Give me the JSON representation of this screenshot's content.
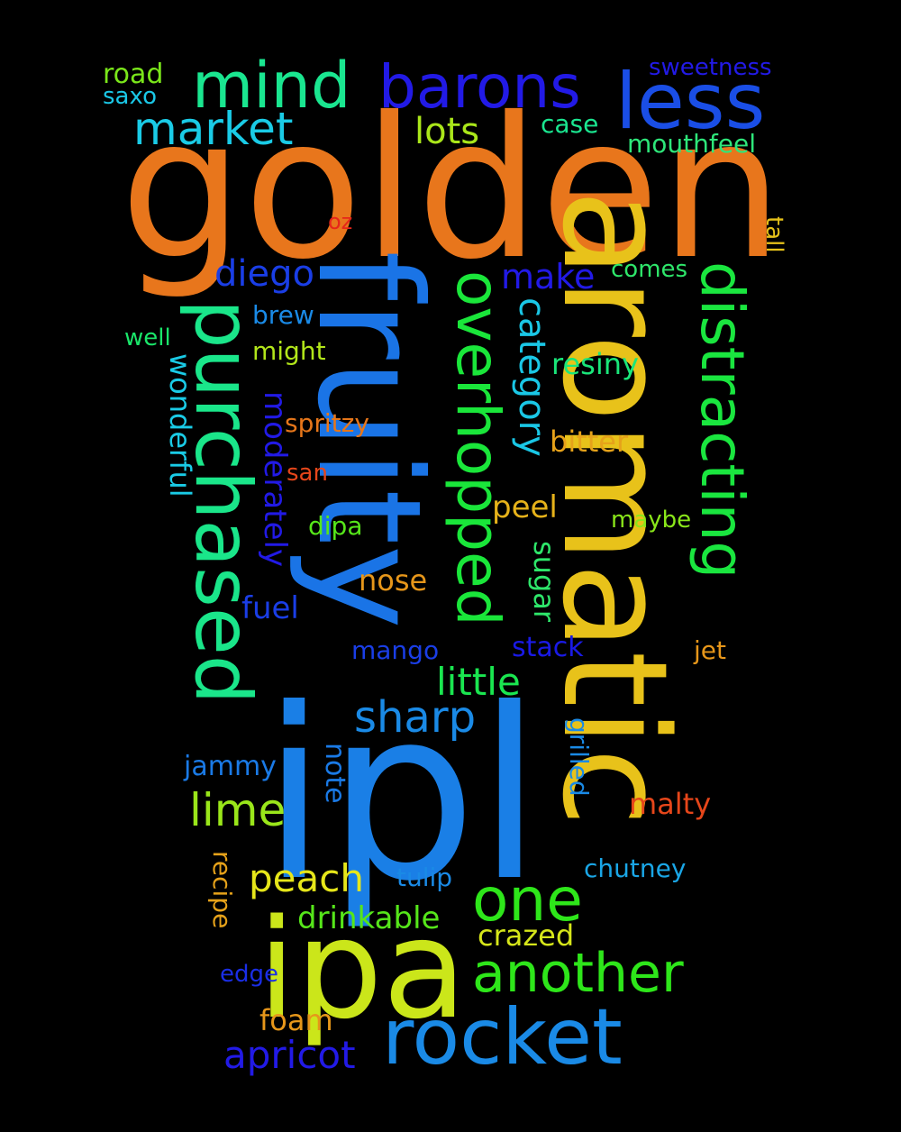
{
  "words": [
    {
      "id": "golden",
      "text": "golden",
      "color": "#e8761c"
    },
    {
      "id": "ipl",
      "text": "ipl",
      "color": "#1a7fe6"
    },
    {
      "id": "aromatic",
      "text": "aromatic",
      "color": "#e8c21a"
    },
    {
      "id": "fruity",
      "text": "fruity",
      "color": "#1a74e6"
    },
    {
      "id": "ipa",
      "text": "ipa",
      "color": "#cbe61a"
    },
    {
      "id": "purchased",
      "text": "purchased",
      "color": "#1ae68a"
    },
    {
      "id": "overhopped",
      "text": "overhopped",
      "color": "#1ae63a"
    },
    {
      "id": "distracting",
      "text": "distracting",
      "color": "#1ae63f"
    },
    {
      "id": "rocket",
      "text": "rocket",
      "color": "#1a8ae6"
    },
    {
      "id": "less",
      "text": "less",
      "color": "#1a4ee6"
    },
    {
      "id": "mind",
      "text": "mind",
      "color": "#1ae690"
    },
    {
      "id": "barons",
      "text": "barons",
      "color": "#221ae6"
    },
    {
      "id": "one",
      "text": "one",
      "color": "#2ee61a"
    },
    {
      "id": "another",
      "text": "another",
      "color": "#2ee61a"
    },
    {
      "id": "market",
      "text": "market",
      "color": "#1acbe6"
    },
    {
      "id": "sharp",
      "text": "sharp",
      "color": "#1a8ae6"
    },
    {
      "id": "lime",
      "text": "lime",
      "color": "#9ae61a"
    },
    {
      "id": "diego",
      "text": "diego",
      "color": "#1a3ee6"
    },
    {
      "id": "little",
      "text": "little",
      "color": "#1ae650"
    },
    {
      "id": "peach",
      "text": "peach",
      "color": "#e6e61a"
    },
    {
      "id": "apricot",
      "text": "apricot",
      "color": "#221ae6"
    },
    {
      "id": "category",
      "text": "category",
      "color": "#1ac7e6"
    },
    {
      "id": "lots",
      "text": "lots",
      "color": "#aae61a"
    },
    {
      "id": "make",
      "text": "make",
      "color": "#221ae6"
    },
    {
      "id": "moderately",
      "text": "moderately",
      "color": "#221ae6"
    },
    {
      "id": "wonderful",
      "text": "wonderful",
      "color": "#1acbe6"
    },
    {
      "id": "drinkable",
      "text": "drinkable",
      "color": "#56e61a"
    },
    {
      "id": "resiny",
      "text": "resiny",
      "color": "#1ae67a"
    },
    {
      "id": "bitter",
      "text": "bitter",
      "color": "#e6a21a"
    },
    {
      "id": "peel",
      "text": "peel",
      "color": "#e6b21a"
    },
    {
      "id": "nose",
      "text": "nose",
      "color": "#e6961a"
    },
    {
      "id": "fuel",
      "text": "fuel",
      "color": "#1a3ee6"
    },
    {
      "id": "sugar",
      "text": "sugar",
      "color": "#2ee66a"
    },
    {
      "id": "crazed",
      "text": "crazed",
      "color": "#d6e61a"
    },
    {
      "id": "malty",
      "text": "malty",
      "color": "#e6461a"
    },
    {
      "id": "foam",
      "text": "foam",
      "color": "#e6961a"
    },
    {
      "id": "mango",
      "text": "mango",
      "color": "#1a3ee6"
    },
    {
      "id": "stack",
      "text": "stack",
      "color": "#1a1ae6"
    },
    {
      "id": "jammy",
      "text": "jammy",
      "color": "#1a7ae6"
    },
    {
      "id": "note",
      "text": "note",
      "color": "#1a7ae6"
    },
    {
      "id": "grilled",
      "text": "grilled",
      "color": "#1a8ae6"
    },
    {
      "id": "chutney",
      "text": "chutney",
      "color": "#1aa6e6"
    },
    {
      "id": "tulip",
      "text": "tulip",
      "color": "#1a8ae6"
    },
    {
      "id": "recipe",
      "text": "recipe",
      "color": "#e6a21a"
    },
    {
      "id": "edge",
      "text": "edge",
      "color": "#1a2ee6"
    },
    {
      "id": "mouthfeel",
      "text": "mouthfeel",
      "color": "#2ee67a"
    },
    {
      "id": "case",
      "text": "case",
      "color": "#1ae690"
    },
    {
      "id": "sweetness",
      "text": "sweetness",
      "color": "#221ae6"
    },
    {
      "id": "road",
      "text": "road",
      "color": "#7ae61a"
    },
    {
      "id": "saxo",
      "text": "saxo",
      "color": "#1ac7e6"
    },
    {
      "id": "brew",
      "text": "brew",
      "color": "#1a8ae6"
    },
    {
      "id": "well",
      "text": "well",
      "color": "#1ae66a"
    },
    {
      "id": "might",
      "text": "might",
      "color": "#b2e61a"
    },
    {
      "id": "spritzy",
      "text": "spritzy",
      "color": "#e6761a"
    },
    {
      "id": "san",
      "text": "san",
      "color": "#e6461a"
    },
    {
      "id": "dipa",
      "text": "dipa",
      "color": "#56e61a"
    },
    {
      "id": "comes",
      "text": "comes",
      "color": "#2ee66a"
    },
    {
      "id": "maybe",
      "text": "maybe",
      "color": "#8ae61a"
    },
    {
      "id": "jet",
      "text": "jet",
      "color": "#e6961a"
    },
    {
      "id": "tall",
      "text": "tall",
      "color": "#e6c21a"
    },
    {
      "id": "oz",
      "text": "oz",
      "color": "#e6261a"
    }
  ]
}
